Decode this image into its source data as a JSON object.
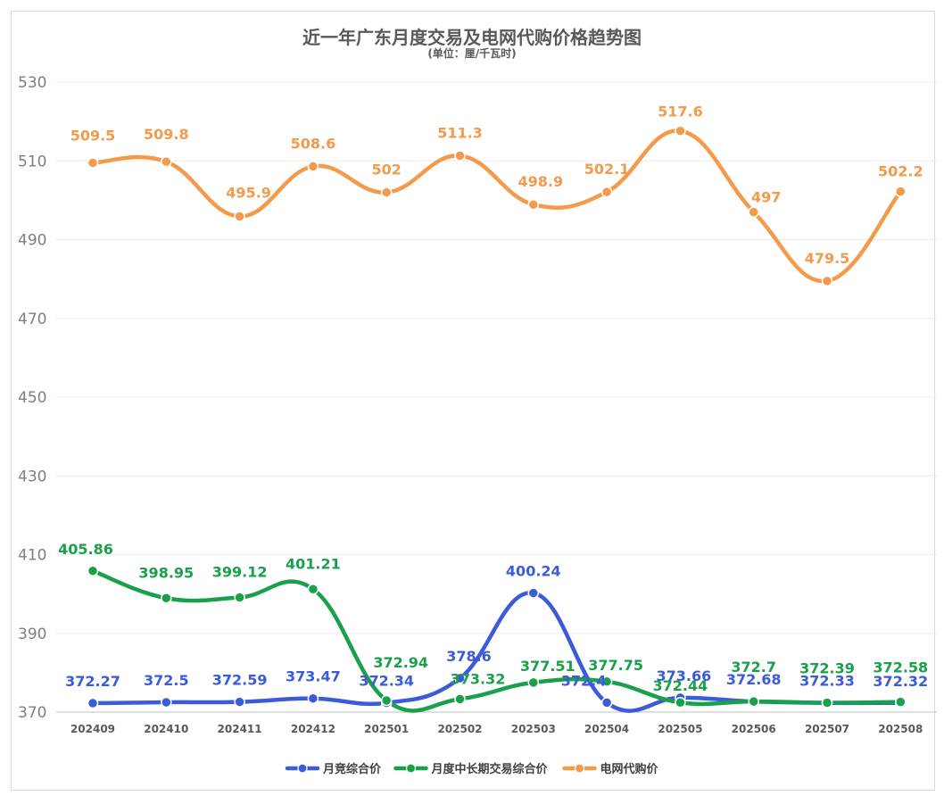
{
  "chart_data": {
    "type": "line",
    "title": "近一年广东月度交易及电网代购价格趋势图",
    "subtitle": "(单位：厘/千瓦时)",
    "categories": [
      "202409",
      "202410",
      "202411",
      "202412",
      "202501",
      "202502",
      "202503",
      "202504",
      "202505",
      "202506",
      "202507",
      "202508"
    ],
    "ylim": [
      370,
      530
    ],
    "yticks": [
      370,
      390,
      410,
      430,
      450,
      470,
      490,
      510,
      530
    ],
    "grid": true,
    "legend_position": "bottom",
    "series": [
      {
        "name": "月竞综合价",
        "color": "#3b5bdb",
        "values": [
          372.27,
          372.5,
          372.59,
          373.47,
          372.34,
          378.6,
          400.24,
          372.4,
          373.66,
          372.68,
          372.33,
          372.32
        ],
        "labels": [
          "372.27",
          "372.5",
          "372.59",
          "373.47",
          "372.34",
          "378.6",
          "400.24",
          "372.4",
          "373.66",
          "372.68",
          "372.33",
          "372.32"
        ]
      },
      {
        "name": "月度中长期交易综合价",
        "color": "#1aa04a",
        "values": [
          405.86,
          398.95,
          399.12,
          401.21,
          372.94,
          373.32,
          377.51,
          377.75,
          372.44,
          372.7,
          372.39,
          372.58
        ],
        "labels": [
          "405.86",
          "398.95",
          "399.12",
          "401.21",
          "372.94",
          "373.32",
          "377.51",
          "377.75",
          "372.44",
          "372.7",
          "372.39",
          "372.58"
        ]
      },
      {
        "name": "电网代购价",
        "color": "#f39a4c",
        "values": [
          509.5,
          509.8,
          495.9,
          508.6,
          502,
          511.3,
          498.9,
          502.1,
          517.6,
          497,
          479.5,
          502.2
        ],
        "labels": [
          "509.5",
          "509.8",
          "495.9",
          "508.6",
          "502",
          "511.3",
          "498.9",
          "502.1",
          "517.6",
          "497",
          "479.5",
          "502.2"
        ]
      }
    ]
  }
}
